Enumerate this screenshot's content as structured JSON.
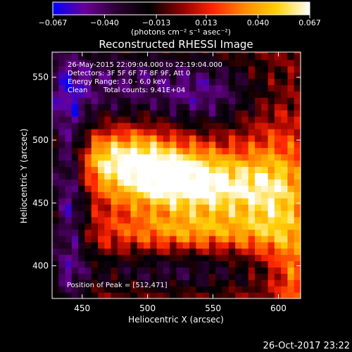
{
  "chart_data": {
    "type": "heatmap",
    "title": "Reconstructed RHESSI Image",
    "xlabel": "Heliocentric X (arcsec)",
    "ylabel": "Heliocentric Y (arcsec)",
    "xlim": [
      427,
      617
    ],
    "ylim": [
      374,
      570
    ],
    "xticks": [
      450,
      500,
      550,
      600
    ],
    "yticks": [
      400,
      450,
      500,
      550
    ],
    "grid": false,
    "colorbar": {
      "label": "(photons cm⁻² s⁻¹ asec⁻²)",
      "range": [
        -0.067,
        0.067
      ],
      "ticks": [
        -0.067,
        -0.04,
        -0.013,
        0.013,
        0.04,
        0.067
      ],
      "tick_labels": [
        "−0.067",
        "−0.040",
        "−0.013",
        "0.013",
        "0.040",
        "0.067"
      ],
      "colors": [
        "#0000ff",
        "#6a0096",
        "#2a0030",
        "#000000",
        "#8c0000",
        "#ff2600",
        "#ff8c00",
        "#ffd20a",
        "#ffffff"
      ]
    },
    "annotations": {
      "time_range": "26-May-2015 22:09:04.000 to 22:19:04.000",
      "detectors": "Detectors: 3F 5F 6F 7F 8F 9F, Att 0",
      "energy_range": "Energy Range: 3.0 - 6.0 keV",
      "clean_label": "Clean",
      "total_counts": "Total counts: 9.41E+04",
      "peak_position": "Position of Peak = [512,471]"
    },
    "peak": {
      "x": 512,
      "y": 471
    },
    "footer_timestamp": "26-Oct-2017 23:22"
  }
}
